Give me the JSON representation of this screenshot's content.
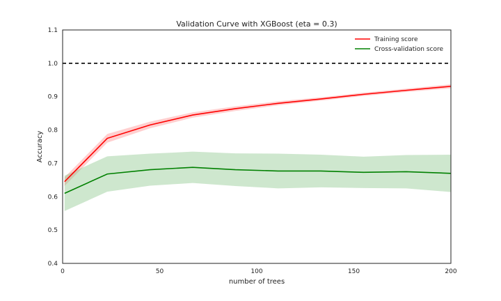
{
  "chart_data": {
    "type": "line",
    "title": "Validation Curve with XGBoost (eta = 0.3)",
    "xlabel": "number of trees",
    "ylabel": "Accuracy",
    "xlim": [
      0,
      200
    ],
    "ylim": [
      0.4,
      1.1
    ],
    "xticks": [
      0,
      50,
      100,
      150,
      200
    ],
    "xtick_labels": [
      "0",
      "50",
      "100",
      "150",
      "200"
    ],
    "yticks": [
      0.4,
      0.5,
      0.6,
      0.7,
      0.8,
      0.9,
      1.0,
      1.1
    ],
    "ytick_labels": [
      "0.4",
      "0.5",
      "0.6",
      "0.7",
      "0.8",
      "0.9",
      "1.0",
      "1.1"
    ],
    "grid": false,
    "legend_position": "top-right",
    "reference_line": {
      "y": 1.0,
      "style": "dashed",
      "color": "#000000"
    },
    "x": [
      1,
      23,
      45,
      67,
      89,
      111,
      133,
      155,
      177,
      200
    ],
    "series": [
      {
        "name": "Training score",
        "color": "#ff0000",
        "band_color": "#ff8080",
        "values": [
          0.645,
          0.775,
          0.815,
          0.845,
          0.864,
          0.88,
          0.893,
          0.907,
          0.919,
          0.931
        ],
        "lower": [
          0.632,
          0.762,
          0.805,
          0.837,
          0.857,
          0.874,
          0.888,
          0.902,
          0.914,
          0.925
        ],
        "upper": [
          0.658,
          0.788,
          0.825,
          0.853,
          0.871,
          0.886,
          0.898,
          0.912,
          0.924,
          0.937
        ]
      },
      {
        "name": "Cross-validation score",
        "color": "#008000",
        "band_color": "#7fbf7f",
        "values": [
          0.61,
          0.668,
          0.681,
          0.688,
          0.681,
          0.677,
          0.677,
          0.673,
          0.675,
          0.67
        ],
        "lower": [
          0.557,
          0.615,
          0.633,
          0.641,
          0.632,
          0.625,
          0.628,
          0.626,
          0.625,
          0.614
        ],
        "upper": [
          0.663,
          0.721,
          0.729,
          0.735,
          0.73,
          0.729,
          0.726,
          0.72,
          0.725,
          0.726
        ]
      }
    ]
  }
}
